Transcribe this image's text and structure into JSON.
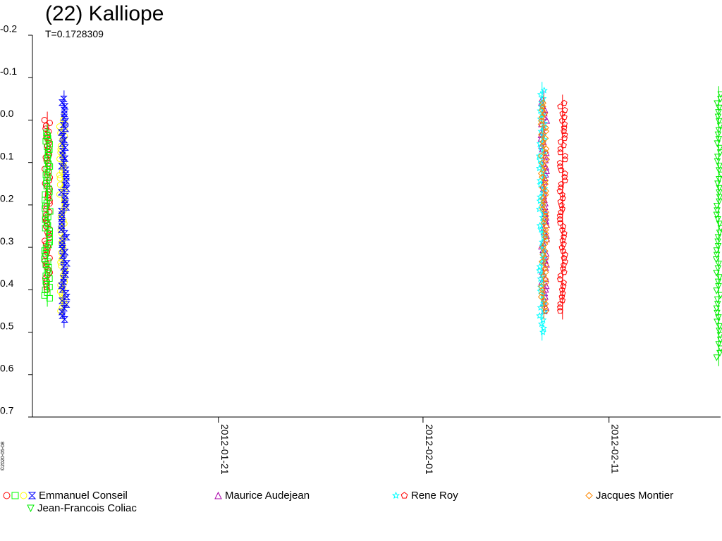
{
  "title": "(22) Kalliope",
  "subtitle": "T=0.1728309",
  "copyright": "©2020-05-08",
  "chart_data": {
    "type": "scatter",
    "title": "(22) Kalliope",
    "subtitle": "T=0.1728309",
    "xlabel": "",
    "ylabel": "",
    "x_range": [
      "2012-01-11",
      "2012-02-17"
    ],
    "y_range": [
      -0.2,
      0.7
    ],
    "y_inverted": true,
    "y_ticks": [
      "-0.2",
      "-0.1",
      "0.0",
      "0.1",
      "0.2",
      "0.3",
      "0.4",
      "0.5",
      "0.6",
      "0.7"
    ],
    "x_ticks": [
      "2012-01-21",
      "2012-02-01",
      "2012-02-11"
    ],
    "grid": false,
    "legend_placement": "bottom",
    "series": [
      {
        "name": "Emmanuel Conseil",
        "color": "#ff0000",
        "marker": "circle",
        "date": "2012-01-11.8",
        "y_min": 0.0,
        "y_max": 0.4
      },
      {
        "name": "Emmanuel Conseil",
        "color": "#00ff00",
        "marker": "square",
        "date": "2012-01-11.8",
        "y_min": 0.03,
        "y_max": 0.42
      },
      {
        "name": "Emmanuel Conseil",
        "color": "#ffff00",
        "marker": "circle",
        "date": "2012-01-12.6",
        "y_min": 0.0,
        "y_max": 0.45
      },
      {
        "name": "Emmanuel Conseil",
        "color": "#0000ff",
        "marker": "bowtie",
        "date": "2012-01-12.7",
        "y_min": -0.05,
        "y_max": 0.47
      },
      {
        "name": "Maurice Audejean",
        "color": "#aa00aa",
        "marker": "triangle-up",
        "date": "2012-02-07.5",
        "y_min": -0.05,
        "y_max": 0.45
      },
      {
        "name": "Rene Roy",
        "color": "#00ffff",
        "marker": "star",
        "date": "2012-02-07.4",
        "y_min": -0.07,
        "y_max": 0.5
      },
      {
        "name": "Rene Roy",
        "color": "#ff0000",
        "marker": "pentagon",
        "date": "2012-02-08.5",
        "y_min": -0.04,
        "y_max": 0.45
      },
      {
        "name": "Jacques Montier",
        "color": "#ff8800",
        "marker": "diamond",
        "date": "2012-02-07.5",
        "y_min": -0.04,
        "y_max": 0.45
      },
      {
        "name": "Jean-Francois Coliac",
        "color": "#00ee00",
        "marker": "triangle-down",
        "date": "2012-02-16.9",
        "y_min": -0.06,
        "y_max": 0.56
      }
    ]
  },
  "legend": [
    {
      "label": "Emmanuel Conseil",
      "marks": [
        {
          "marker": "circle",
          "color": "#ff0000"
        },
        {
          "marker": "square",
          "color": "#00ff00"
        },
        {
          "marker": "circle",
          "color": "#ffff00"
        },
        {
          "marker": "bowtie",
          "color": "#0000ff"
        }
      ]
    },
    {
      "label": "Maurice Audejean",
      "marks": [
        {
          "marker": "triangle-up",
          "color": "#aa00aa"
        }
      ]
    },
    {
      "label": "Rene Roy",
      "marks": [
        {
          "marker": "star",
          "color": "#00ffff"
        },
        {
          "marker": "pentagon",
          "color": "#ff0000"
        }
      ]
    },
    {
      "label": "Jacques Montier",
      "marks": [
        {
          "marker": "diamond",
          "color": "#ff8800"
        }
      ]
    },
    {
      "label": "Jean-Francois Coliac",
      "marks": [
        {
          "marker": "triangle-down",
          "color": "#00ee00"
        }
      ]
    }
  ]
}
